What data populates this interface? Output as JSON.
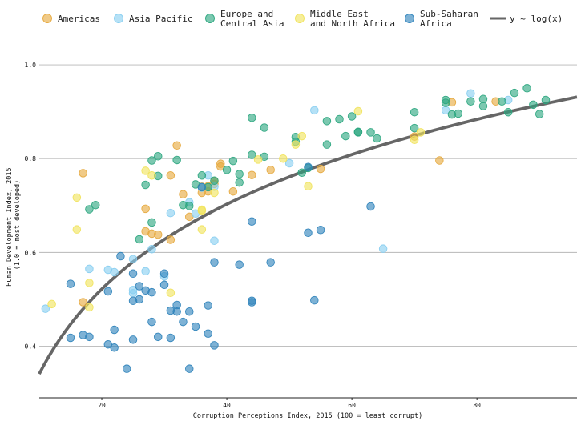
{
  "chart_data": {
    "type": "scatter",
    "title": "",
    "xlabel": "Corruption Perceptions Index, 2015 (100 = least corrupt)",
    "ylabel": [
      "Human Development Index, 2015",
      "(1.0 = most developed)"
    ],
    "xlim": [
      10,
      96
    ],
    "ylim": [
      0.29,
      1.07
    ],
    "xticks": [
      20,
      40,
      60,
      80
    ],
    "yticks": [
      0.4,
      0.6,
      0.8,
      1.0
    ],
    "grid": "horizontal",
    "legend_position": "top",
    "colors": {
      "Americas": "#E6A93E",
      "Asia Pacific": "#87CEF0",
      "Europe and Central Asia": "#2CA77F",
      "Middle East and North Africa": "#F0E35C",
      "Sub-Saharan Africa": "#2E83BB",
      "fit": "#666666"
    },
    "legend": [
      {
        "series": "Americas",
        "lines": [
          "Americas"
        ]
      },
      {
        "series": "Asia Pacific",
        "lines": [
          "Asia Pacific"
        ]
      },
      {
        "series": "Europe and Central Asia",
        "lines": [
          "Europe and",
          "Central Asia"
        ]
      },
      {
        "series": "Middle East and North Africa",
        "lines": [
          "Middle East",
          "and North Africa"
        ]
      },
      {
        "series": "Sub-Saharan Africa",
        "lines": [
          "Sub-Saharan",
          "Africa"
        ]
      },
      {
        "series": "fit",
        "lines": [
          "y ~ log(x)"
        ]
      }
    ],
    "fit": {
      "label": "y ~ log(x)",
      "form": "a + b*ln(x)",
      "a": -0.26,
      "b": 0.261
    },
    "series": [
      {
        "name": "Americas",
        "points": [
          [
            17,
            0.769
          ],
          [
            17,
            0.494
          ],
          [
            27,
            0.693
          ],
          [
            27,
            0.645
          ],
          [
            28,
            0.64
          ],
          [
            29,
            0.638
          ],
          [
            31,
            0.764
          ],
          [
            31,
            0.627
          ],
          [
            32,
            0.828
          ],
          [
            33,
            0.724
          ],
          [
            34,
            0.676
          ],
          [
            36,
            0.74
          ],
          [
            36,
            0.727
          ],
          [
            37,
            0.741
          ],
          [
            37,
            0.73
          ],
          [
            38,
            0.752
          ],
          [
            38,
            0.746
          ],
          [
            39,
            0.789
          ],
          [
            39,
            0.783
          ],
          [
            41,
            0.73
          ],
          [
            44,
            0.765
          ],
          [
            47,
            0.776
          ],
          [
            55,
            0.778
          ],
          [
            70,
            0.847
          ],
          [
            74,
            0.796
          ],
          [
            76,
            0.92
          ],
          [
            83,
            0.922
          ]
        ]
      },
      {
        "name": "Asia Pacific",
        "points": [
          [
            11,
            0.48
          ],
          [
            18,
            0.565
          ],
          [
            21,
            0.563
          ],
          [
            22,
            0.558
          ],
          [
            25,
            0.586
          ],
          [
            25,
            0.52
          ],
          [
            25,
            0.513
          ],
          [
            27,
            0.56
          ],
          [
            28,
            0.607
          ],
          [
            30,
            0.549
          ],
          [
            31,
            0.684
          ],
          [
            34,
            0.707
          ],
          [
            35,
            0.683
          ],
          [
            36,
            0.738
          ],
          [
            37,
            0.764
          ],
          [
            38,
            0.74
          ],
          [
            38,
            0.625
          ],
          [
            50,
            0.79
          ],
          [
            54,
            0.903
          ],
          [
            65,
            0.608
          ],
          [
            75,
            0.903
          ],
          [
            79,
            0.939
          ],
          [
            85,
            0.925
          ]
        ]
      },
      {
        "name": "Europe and Central Asia",
        "points": [
          [
            18,
            0.692
          ],
          [
            19,
            0.701
          ],
          [
            26,
            0.628
          ],
          [
            27,
            0.744
          ],
          [
            28,
            0.796
          ],
          [
            28,
            0.664
          ],
          [
            29,
            0.763
          ],
          [
            29,
            0.805
          ],
          [
            32,
            0.797
          ],
          [
            33,
            0.701
          ],
          [
            34,
            0.699
          ],
          [
            35,
            0.745
          ],
          [
            36,
            0.764
          ],
          [
            37,
            0.739
          ],
          [
            38,
            0.753
          ],
          [
            40,
            0.776
          ],
          [
            41,
            0.795
          ],
          [
            42,
            0.767
          ],
          [
            42,
            0.749
          ],
          [
            44,
            0.887
          ],
          [
            44,
            0.808
          ],
          [
            46,
            0.804
          ],
          [
            46,
            0.866
          ],
          [
            51,
            0.846
          ],
          [
            51,
            0.836
          ],
          [
            52,
            0.77
          ],
          [
            53,
            0.78
          ],
          [
            56,
            0.88
          ],
          [
            56,
            0.83
          ],
          [
            58,
            0.884
          ],
          [
            59,
            0.848
          ],
          [
            60,
            0.89
          ],
          [
            61,
            0.857
          ],
          [
            61,
            0.856
          ],
          [
            63,
            0.856
          ],
          [
            64,
            0.843
          ],
          [
            70,
            0.899
          ],
          [
            70,
            0.865
          ],
          [
            75,
            0.925
          ],
          [
            75,
            0.919
          ],
          [
            76,
            0.894
          ],
          [
            77,
            0.896
          ],
          [
            79,
            0.922
          ],
          [
            81,
            0.927
          ],
          [
            81,
            0.912
          ],
          [
            84,
            0.922
          ],
          [
            85,
            0.899
          ],
          [
            86,
            0.94
          ],
          [
            88,
            0.95
          ],
          [
            89,
            0.915
          ],
          [
            90,
            0.895
          ],
          [
            91,
            0.925
          ]
        ]
      },
      {
        "name": "Middle East and North Africa",
        "points": [
          [
            12,
            0.49
          ],
          [
            16,
            0.717
          ],
          [
            16,
            0.649
          ],
          [
            18,
            0.483
          ],
          [
            18,
            0.535
          ],
          [
            27,
            0.774
          ],
          [
            28,
            0.764
          ],
          [
            31,
            0.514
          ],
          [
            36,
            0.689
          ],
          [
            36,
            0.649
          ],
          [
            36,
            0.691
          ],
          [
            38,
            0.727
          ],
          [
            45,
            0.798
          ],
          [
            49,
            0.8
          ],
          [
            51,
            0.83
          ],
          [
            52,
            0.848
          ],
          [
            53,
            0.741
          ],
          [
            61,
            0.901
          ],
          [
            70,
            0.84
          ],
          [
            71,
            0.856
          ]
        ]
      },
      {
        "name": "Sub-Saharan Africa",
        "points": [
          [
            15,
            0.533
          ],
          [
            15,
            0.418
          ],
          [
            17,
            0.424
          ],
          [
            18,
            0.42
          ],
          [
            21,
            0.517
          ],
          [
            21,
            0.404
          ],
          [
            22,
            0.435
          ],
          [
            22,
            0.397
          ],
          [
            23,
            0.592
          ],
          [
            24,
            0.352
          ],
          [
            25,
            0.555
          ],
          [
            25,
            0.497
          ],
          [
            25,
            0.414
          ],
          [
            26,
            0.528
          ],
          [
            26,
            0.5
          ],
          [
            27,
            0.519
          ],
          [
            28,
            0.515
          ],
          [
            28,
            0.452
          ],
          [
            29,
            0.42
          ],
          [
            30,
            0.555
          ],
          [
            30,
            0.531
          ],
          [
            31,
            0.476
          ],
          [
            31,
            0.418
          ],
          [
            32,
            0.488
          ],
          [
            32,
            0.474
          ],
          [
            33,
            0.452
          ],
          [
            34,
            0.474
          ],
          [
            34,
            0.352
          ],
          [
            35,
            0.442
          ],
          [
            36,
            0.739
          ],
          [
            37,
            0.487
          ],
          [
            37,
            0.427
          ],
          [
            38,
            0.579
          ],
          [
            38,
            0.402
          ],
          [
            42,
            0.574
          ],
          [
            44,
            0.666
          ],
          [
            44,
            0.497
          ],
          [
            44,
            0.494
          ],
          [
            47,
            0.579
          ],
          [
            53,
            0.642
          ],
          [
            53,
            0.782
          ],
          [
            54,
            0.498
          ],
          [
            55,
            0.648
          ],
          [
            63,
            0.698
          ]
        ]
      }
    ]
  }
}
